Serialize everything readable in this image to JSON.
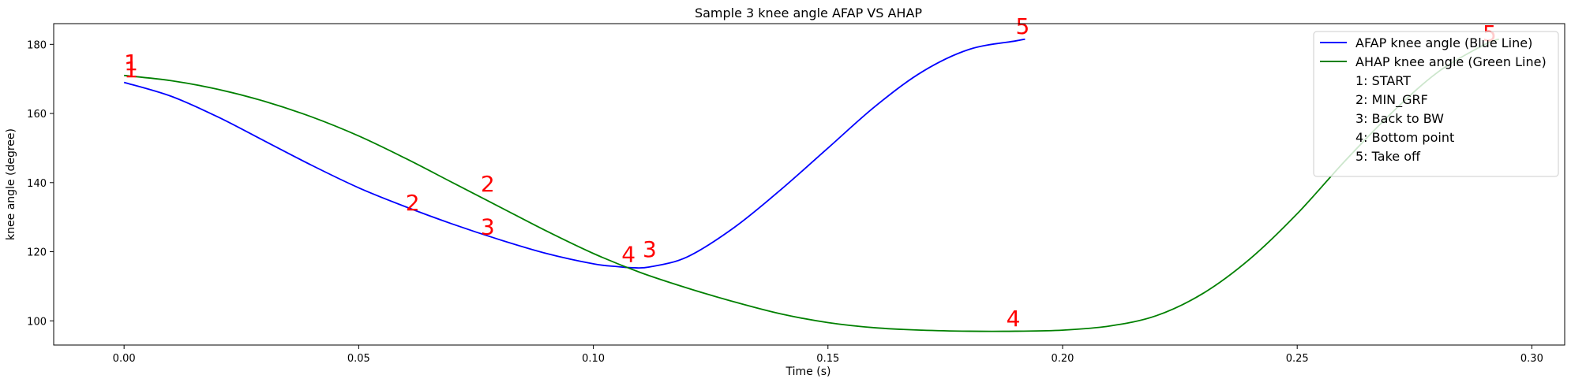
{
  "chart_data": {
    "type": "line",
    "title": "Sample 3 knee angle AFAP VS AHAP",
    "xlabel": "Time (s)",
    "ylabel": "knee angle (degree)",
    "xlim": [
      -0.015,
      0.307
    ],
    "ylim": [
      93,
      186
    ],
    "xticks": [
      0.0,
      0.05,
      0.1,
      0.15,
      0.2,
      0.25,
      0.3
    ],
    "xtick_labels": [
      "0.00",
      "0.05",
      "0.10",
      "0.15",
      "0.20",
      "0.25",
      "0.30"
    ],
    "yticks": [
      100,
      120,
      140,
      160,
      180
    ],
    "ytick_labels": [
      "100",
      "120",
      "140",
      "160",
      "180"
    ],
    "grid": false,
    "legend_position": "top-right",
    "legend": [
      {
        "text": "AFAP knee angle (Blue Line)",
        "color": "#0000ff"
      },
      {
        "text": "AHAP knee angle (Green Line)",
        "color": "#008000"
      },
      {
        "text": "1: START"
      },
      {
        "text": "2: MIN_GRF"
      },
      {
        "text": "3: Back to BW"
      },
      {
        "text": "4: Bottom point"
      },
      {
        "text": "5: Take off"
      }
    ],
    "series": [
      {
        "color": "#0000ff",
        "x": [
          0.0,
          0.01,
          0.02,
          0.03,
          0.04,
          0.05,
          0.06,
          0.07,
          0.08,
          0.09,
          0.1,
          0.105,
          0.108,
          0.112,
          0.12,
          0.13,
          0.14,
          0.15,
          0.16,
          0.17,
          0.18,
          0.19,
          0.192
        ],
        "y": [
          169,
          165,
          159,
          152,
          145,
          138.5,
          133,
          128,
          123.5,
          119.5,
          116.5,
          115.7,
          115.4,
          115.6,
          118.5,
          127,
          138,
          150,
          162,
          172,
          178.5,
          181,
          181.5
        ]
      },
      {
        "color": "#008000",
        "x": [
          0.0,
          0.01,
          0.02,
          0.03,
          0.04,
          0.05,
          0.06,
          0.07,
          0.08,
          0.09,
          0.1,
          0.11,
          0.12,
          0.13,
          0.14,
          0.15,
          0.16,
          0.17,
          0.18,
          0.19,
          0.2,
          0.21,
          0.22,
          0.23,
          0.24,
          0.25,
          0.26,
          0.27,
          0.28,
          0.29,
          0.293
        ],
        "y": [
          171,
          169.5,
          167,
          163.5,
          159,
          153.5,
          147,
          140,
          133,
          126,
          119.5,
          114,
          109.5,
          105.5,
          102,
          99.5,
          98,
          97.3,
          97,
          97,
          97.3,
          98.5,
          101.5,
          108,
          118,
          131,
          146,
          160,
          172,
          180,
          181.5
        ]
      }
    ],
    "annotations": [
      {
        "text": "1",
        "x": 0.0015,
        "y": 170.5,
        "color": "#ff0000"
      },
      {
        "text": "1",
        "x": 0.0015,
        "y": 172.5,
        "color": "#ff0000"
      },
      {
        "text": "2",
        "x": 0.0615,
        "y": 132.0,
        "color": "#ff0000"
      },
      {
        "text": "2",
        "x": 0.0775,
        "y": 137.5,
        "color": "#ff0000"
      },
      {
        "text": "3",
        "x": 0.0775,
        "y": 125.0,
        "color": "#ff0000"
      },
      {
        "text": "4",
        "x": 0.1075,
        "y": 117.0,
        "color": "#ff0000"
      },
      {
        "text": "3",
        "x": 0.112,
        "y": 118.5,
        "color": "#ff0000"
      },
      {
        "text": "4",
        "x": 0.1895,
        "y": 98.5,
        "color": "#ff0000"
      },
      {
        "text": "5",
        "x": 0.1915,
        "y": 183.0,
        "color": "#ff0000"
      },
      {
        "text": "5",
        "x": 0.291,
        "y": 181.0,
        "color": "#ff0000"
      }
    ]
  }
}
